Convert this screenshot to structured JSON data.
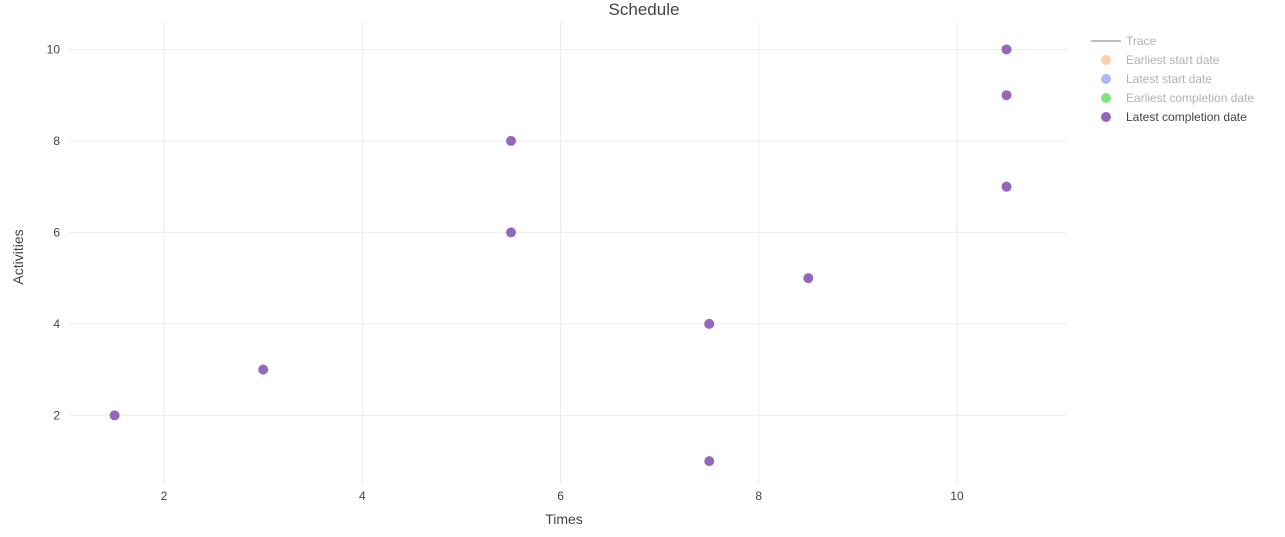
{
  "chart_data": {
    "type": "scatter",
    "title": "Schedule",
    "xlabel": "Times",
    "ylabel": "Activities",
    "xlim": [
      1.05,
      11.1
    ],
    "ylim": [
      0.5,
      10.6
    ],
    "xticks": [
      2,
      4,
      6,
      8,
      10
    ],
    "yticks": [
      2,
      4,
      6,
      8,
      10
    ],
    "grid": true,
    "legend_position": "top-right",
    "legend": [
      {
        "name": "Trace",
        "symbol": "line",
        "color": "#7f7f7f",
        "visible": false
      },
      {
        "name": "Earliest start date",
        "symbol": "dot",
        "color": "#ffa15a",
        "visible": false
      },
      {
        "name": "Latest start date",
        "symbol": "dot",
        "color": "#636efa",
        "visible": false
      },
      {
        "name": "Earliest completion date",
        "symbol": "dot",
        "color": "#00cc00",
        "visible": false
      },
      {
        "name": "Latest completion date",
        "symbol": "dot",
        "color": "#9467bd",
        "visible": true
      }
    ],
    "series": [
      {
        "name": "Latest completion date",
        "color": "#9467bd",
        "points": [
          {
            "x": 1.5,
            "y": 2
          },
          {
            "x": 3.0,
            "y": 3
          },
          {
            "x": 5.5,
            "y": 8
          },
          {
            "x": 5.5,
            "y": 6
          },
          {
            "x": 7.5,
            "y": 4
          },
          {
            "x": 7.5,
            "y": 1
          },
          {
            "x": 8.5,
            "y": 5
          },
          {
            "x": 10.5,
            "y": 10
          },
          {
            "x": 10.5,
            "y": 9
          },
          {
            "x": 10.5,
            "y": 7
          }
        ]
      }
    ]
  }
}
